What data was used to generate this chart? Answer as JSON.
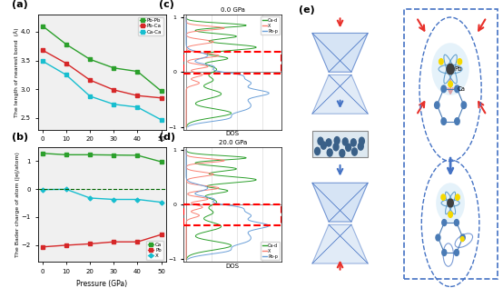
{
  "pressure_a": [
    0,
    10,
    20,
    30,
    40,
    50
  ],
  "pb_pb": [
    4.1,
    3.78,
    3.52,
    3.37,
    3.31,
    2.97
  ],
  "pb_ca": [
    3.68,
    3.45,
    3.16,
    2.99,
    2.89,
    2.85
  ],
  "ca_ca": [
    3.49,
    3.25,
    2.88,
    2.74,
    2.69,
    2.47
  ],
  "pressure_b": [
    0,
    10,
    20,
    30,
    40,
    50
  ],
  "bader_ca": [
    1.27,
    1.22,
    1.22,
    1.21,
    1.2,
    0.97
  ],
  "bader_pb": [
    -2.06,
    -2.0,
    -1.95,
    -1.88,
    -1.88,
    -1.62
  ],
  "bader_x": [
    -0.02,
    -0.01,
    -0.32,
    -0.37,
    -0.37,
    -0.47
  ],
  "color_green": "#2ca02c",
  "color_red": "#d62728",
  "color_cyan": "#17becf",
  "color_blue": "#4472c4",
  "bg_color": "#f0f0f0",
  "dos_color_green": "#2ca02c",
  "dos_color_red": "#fa8072",
  "dos_color_blue": "#6a9fd8"
}
